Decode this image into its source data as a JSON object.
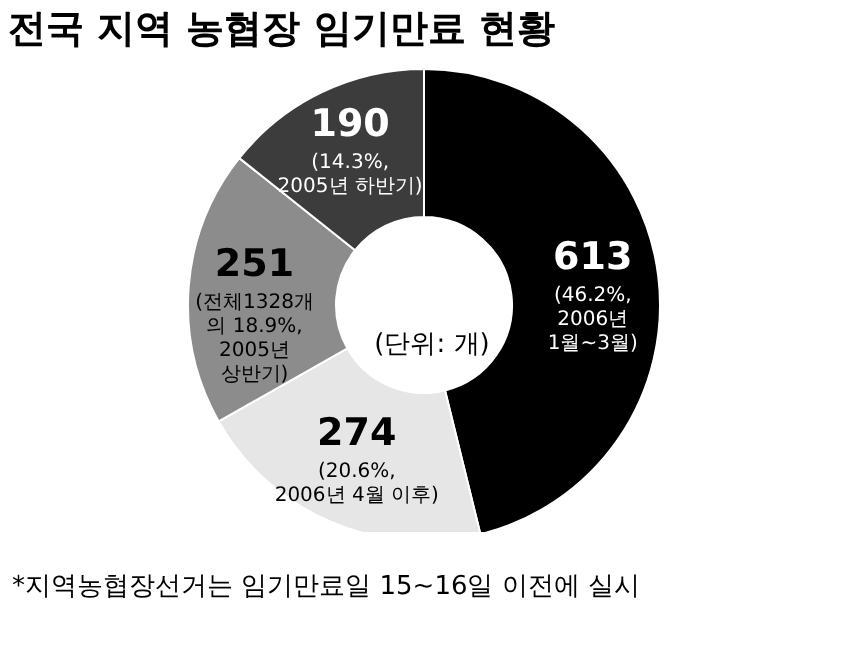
{
  "chart_data": {
    "type": "donut",
    "title": "전국 지역 농협장 임기만료 현황",
    "categories": [
      "(46.2%,\n2006년\n1월~3월)",
      "(20.6%,\n2006년 4월 이후)",
      "(전체1328개\n의 18.9%,\n2005년\n상반기)",
      "(14.3%,\n2005년 하반기)"
    ],
    "values": [
      613,
      274,
      251,
      190
    ],
    "colors": [
      "#000000",
      "#e6e6e6",
      "#8c8c8c",
      "#3c3c3c"
    ],
    "data_labels": true,
    "legend": false,
    "annotations": [
      "(단위: 개)",
      "*지역농협장선거는 임기만료일 15~16일 이전에 실시"
    ]
  }
}
